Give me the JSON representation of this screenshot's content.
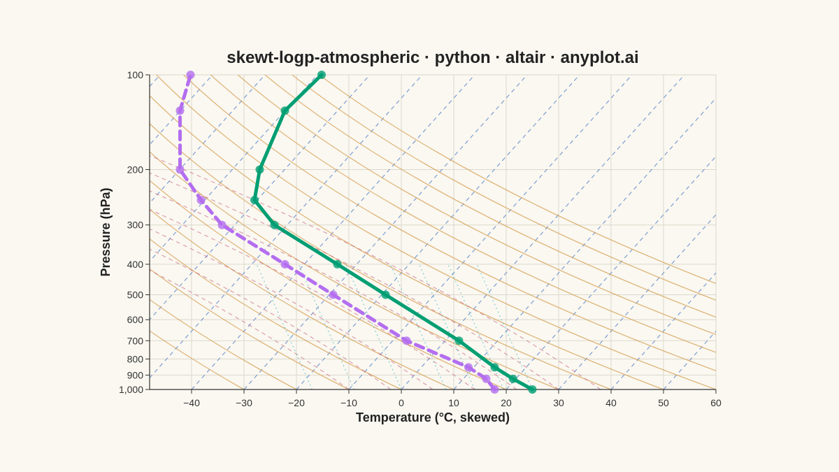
{
  "chart_data": {
    "type": "line",
    "title": "skewt-logp-atmospheric · python · altair · anyplot.ai",
    "xlabel": "Temperature (°C, skewed)",
    "ylabel": "Pressure (hPa)",
    "x_scale": "skewed temperature",
    "y_scale": "log pressure (inverted)",
    "xlim": [
      -48,
      60
    ],
    "ylim": [
      1000,
      100
    ],
    "x_ticks": [
      -40,
      -30,
      -20,
      -10,
      0,
      10,
      20,
      30,
      40,
      50,
      60
    ],
    "x_tick_labels": [
      "−40",
      "−30",
      "−20",
      "−10",
      "0",
      "10",
      "20",
      "30",
      "40",
      "50",
      "60"
    ],
    "y_ticks": [
      1000,
      900,
      800,
      700,
      600,
      500,
      400,
      300,
      200,
      100
    ],
    "y_tick_labels": [
      "1,000",
      "900",
      "800",
      "700",
      "600",
      "500",
      "400",
      "300",
      "200",
      "100"
    ],
    "grid": true,
    "legend": "none",
    "series": [
      {
        "color": "#009e73",
        "style": "solid",
        "points": [
          {
            "p": 1000,
            "x": 25
          },
          {
            "p": 925,
            "x": 21.3
          },
          {
            "p": 850,
            "x": 17.8
          },
          {
            "p": 700,
            "x": 11
          },
          {
            "p": 500,
            "x": -3
          },
          {
            "p": 400,
            "x": -12.2
          },
          {
            "p": 300,
            "x": -24.2
          },
          {
            "p": 250,
            "x": -28
          },
          {
            "p": 200,
            "x": -27
          },
          {
            "p": 130,
            "x": -22.2
          },
          {
            "p": 100,
            "x": -15.2
          }
        ]
      },
      {
        "color": "#b46ef0",
        "style": "dashed",
        "points": [
          {
            "p": 1000,
            "x": 17.8
          },
          {
            "p": 925,
            "x": 16.2
          },
          {
            "p": 850,
            "x": 12.8
          },
          {
            "p": 700,
            "x": 1
          },
          {
            "p": 500,
            "x": -13
          },
          {
            "p": 400,
            "x": -22.2
          },
          {
            "p": 300,
            "x": -34.2
          },
          {
            "p": 250,
            "x": -38.2
          },
          {
            "p": 200,
            "x": -42.2
          },
          {
            "p": 130,
            "x": -42.2
          },
          {
            "p": 100,
            "x": -40.2
          }
        ]
      }
    ],
    "reference_lines": {
      "isotherm_color": "#4a78c2",
      "dry_adiabat_color": "#d49a4a",
      "moist_adiabat_color": "#c86080",
      "mixing_ratio_color": "#40b5c4"
    }
  }
}
